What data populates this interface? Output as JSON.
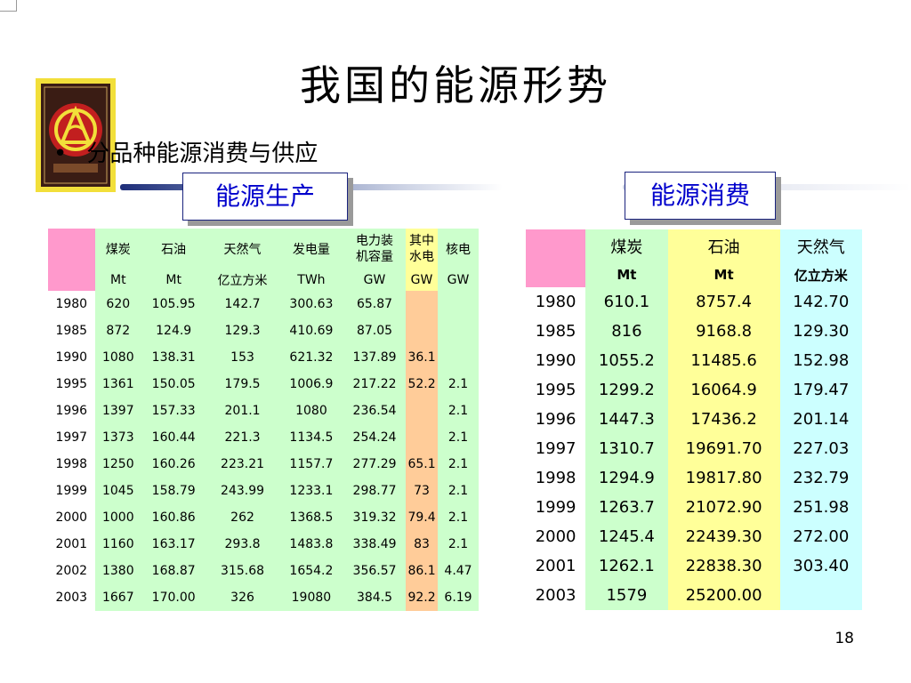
{
  "slide": {
    "title": "我国的能源形势",
    "bullet_symbol": "•",
    "bullet": "分品种能源消费与供应",
    "page_number": "18"
  },
  "production": {
    "label": "能源生产",
    "headers": [
      "",
      "煤炭",
      "石油",
      "天然气",
      "发电量",
      "电力装机容量",
      "其中水电",
      "核电"
    ],
    "units": [
      "",
      "Mt",
      "Mt",
      "亿立方米",
      "TWh",
      "GW",
      "GW",
      "GW"
    ],
    "rows": [
      [
        "1980",
        "620",
        "105.95",
        "142.7",
        "300.63",
        "65.87",
        "",
        ""
      ],
      [
        "1985",
        "872",
        "124.9",
        "129.3",
        "410.69",
        "87.05",
        "",
        ""
      ],
      [
        "1990",
        "1080",
        "138.31",
        "153",
        "621.32",
        "137.89",
        "36.1",
        ""
      ],
      [
        "1995",
        "1361",
        "150.05",
        "179.5",
        "1006.9",
        "217.22",
        "52.2",
        "2.1"
      ],
      [
        "1996",
        "1397",
        "157.33",
        "201.1",
        "1080",
        "236.54",
        "",
        "2.1"
      ],
      [
        "1997",
        "1373",
        "160.44",
        "221.3",
        "1134.5",
        "254.24",
        "",
        "2.1"
      ],
      [
        "1998",
        "1250",
        "160.26",
        "223.21",
        "1157.7",
        "277.29",
        "65.1",
        "2.1"
      ],
      [
        "1999",
        "1045",
        "158.79",
        "243.99",
        "1233.1",
        "298.77",
        "73",
        "2.1"
      ],
      [
        "2000",
        "1000",
        "160.86",
        "262",
        "1368.5",
        "319.32",
        "79.4",
        "2.1"
      ],
      [
        "2001",
        "1160",
        "163.17",
        "293.8",
        "1483.8",
        "338.49",
        "83",
        "2.1"
      ],
      [
        "2002",
        "1380",
        "168.87",
        "315.68",
        "1654.2",
        "356.57",
        "86.1",
        "4.47"
      ],
      [
        "2003",
        "1667",
        "170.00",
        "326",
        "19080",
        "384.5",
        "92.2",
        "6.19"
      ]
    ]
  },
  "consumption": {
    "label": "能源消费",
    "headers": [
      "",
      "煤炭",
      "石油",
      "天然气"
    ],
    "units": [
      "",
      "Mt",
      "Mt",
      "亿立方米"
    ],
    "rows": [
      [
        "1980",
        "610.1",
        "8757.4",
        "142.70"
      ],
      [
        "1985",
        "816",
        "9168.8",
        "129.30"
      ],
      [
        "1990",
        "1055.2",
        "11485.6",
        "152.98"
      ],
      [
        "1995",
        "1299.2",
        "16064.9",
        "179.47"
      ],
      [
        "1996",
        "1447.3",
        "17436.2",
        "201.14"
      ],
      [
        "1997",
        "1310.7",
        "19691.70",
        "227.03"
      ],
      [
        "1998",
        "1294.9",
        "19817.80",
        "232.79"
      ],
      [
        "1999",
        "1263.7",
        "21072.90",
        "251.98"
      ],
      [
        "2000",
        "1245.4",
        "22439.30",
        "272.00"
      ],
      [
        "2001",
        "1262.1",
        "22838.30",
        "303.40"
      ],
      [
        "2003",
        "1579",
        "25200.00",
        ""
      ]
    ]
  }
}
